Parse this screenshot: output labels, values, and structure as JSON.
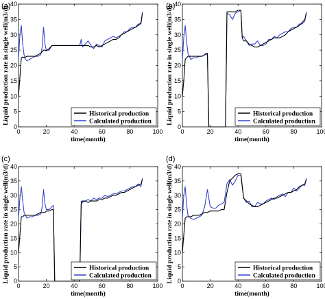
{
  "chart_data": [
    {
      "panel": "(a)",
      "type": "line",
      "xlabel": "time(month)",
      "ylabel": "Liquid production rate in single well(m3/d)",
      "xlim": [
        0,
        100
      ],
      "ylim": [
        0,
        40
      ],
      "xticks": [
        "0",
        "20",
        "40",
        "60",
        "80",
        "100"
      ],
      "yticks": [
        "0",
        "5",
        "10",
        "15",
        "20",
        "25",
        "30",
        "35",
        "40"
      ],
      "legend_position": "bottom-right",
      "series": [
        {
          "name": "Historical production",
          "color": "#000000",
          "x": [
            0,
            1,
            2,
            3,
            4,
            5,
            6,
            8,
            10,
            12,
            14,
            16,
            17,
            18,
            19,
            20,
            22,
            24,
            26,
            28,
            30,
            32,
            34,
            36,
            38,
            40,
            42,
            44,
            45,
            46,
            48,
            50,
            52,
            54,
            56,
            58,
            60,
            62,
            64,
            66,
            68,
            70,
            72,
            74,
            76,
            78,
            80,
            82,
            84,
            86,
            88,
            89
          ],
          "y": [
            10,
            16,
            22.5,
            22.8,
            22.5,
            22.7,
            23,
            23,
            23,
            23,
            23.5,
            24,
            24.5,
            25,
            25,
            24.8,
            25.5,
            26.5,
            26.5,
            26.5,
            26.5,
            26.5,
            26.5,
            26.5,
            26.5,
            26.5,
            26.5,
            26.5,
            26.5,
            26.5,
            26.5,
            26.5,
            26,
            26,
            26.5,
            26,
            26.5,
            27,
            27.5,
            28,
            28.5,
            28.5,
            29,
            30,
            30.5,
            31,
            31.5,
            32,
            32.5,
            33,
            34,
            37
          ]
        },
        {
          "name": "Calculated production",
          "color": "#3344cc",
          "x": [
            0,
            1,
            2,
            3,
            4,
            5,
            6,
            8,
            10,
            12,
            14,
            16,
            17,
            18,
            19,
            20,
            22,
            24,
            26,
            28,
            30,
            32,
            34,
            36,
            38,
            40,
            42,
            44,
            45,
            46,
            48,
            50,
            52,
            54,
            56,
            58,
            60,
            62,
            64,
            66,
            68,
            70,
            72,
            74,
            76,
            78,
            80,
            82,
            84,
            86,
            88,
            89
          ],
          "y": [
            22,
            30,
            33,
            27,
            23.5,
            22,
            21.5,
            22,
            22.5,
            23,
            23,
            23.5,
            26,
            32.5,
            27,
            25,
            25,
            26.5,
            26.5,
            26.5,
            26.5,
            26.5,
            26.5,
            26.5,
            26.5,
            26.5,
            26.5,
            26.5,
            28.5,
            26,
            27,
            28,
            26.5,
            25.5,
            27,
            26.5,
            26,
            28,
            28.5,
            29,
            29.5,
            29,
            29.5,
            30,
            31,
            31,
            32,
            32.5,
            32.5,
            33.5,
            33.5,
            37.5
          ]
        }
      ]
    },
    {
      "panel": "(b)",
      "type": "line",
      "xlabel": "time(month)",
      "ylabel": "Liquid production rate in single well(m3/d)",
      "xlim": [
        0,
        100
      ],
      "ylim": [
        0,
        40
      ],
      "xticks": [
        "0",
        "20",
        "40",
        "60",
        "80",
        "100"
      ],
      "yticks": [
        "0",
        "5",
        "10",
        "15",
        "20",
        "25",
        "30",
        "35",
        "40"
      ],
      "legend_position": "bottom-right",
      "series": [
        {
          "name": "Historical production",
          "color": "#000000",
          "x": [
            0,
            1,
            2,
            3,
            4,
            6,
            8,
            10,
            12,
            14,
            16,
            17,
            18,
            19,
            20,
            22,
            24,
            26,
            28,
            30,
            31,
            32,
            34,
            36,
            38,
            40,
            42,
            43,
            44,
            46,
            48,
            50,
            52,
            54,
            56,
            58,
            60,
            62,
            64,
            66,
            68,
            70,
            72,
            74,
            76,
            78,
            80,
            82,
            84,
            86,
            88,
            89
          ],
          "y": [
            10,
            15,
            22,
            22.5,
            23,
            23,
            23,
            23,
            23,
            23,
            23.5,
            24,
            24,
            0,
            0,
            0,
            0,
            0,
            0,
            0,
            0,
            37.5,
            37.5,
            37.5,
            37.5,
            38,
            38,
            29,
            28,
            28,
            27,
            26.5,
            26,
            26,
            26.5,
            27,
            27.5,
            28,
            28.5,
            29,
            29,
            29,
            29.5,
            30,
            31,
            31.5,
            32,
            32.5,
            33,
            34,
            35,
            37
          ]
        },
        {
          "name": "Calculated production",
          "color": "#3344cc",
          "x": [
            0,
            1,
            2,
            3,
            4,
            6,
            8,
            10,
            12,
            14,
            16,
            17,
            18,
            19,
            20,
            22,
            24,
            26,
            28,
            30,
            31,
            32,
            34,
            36,
            38,
            40,
            42,
            43,
            44,
            46,
            48,
            50,
            52,
            54,
            56,
            58,
            60,
            62,
            64,
            66,
            68,
            70,
            72,
            74,
            76,
            78,
            80,
            82,
            84,
            86,
            88,
            89
          ],
          "y": [
            22,
            29,
            33,
            28,
            24,
            22,
            22.5,
            22.5,
            23,
            23,
            23.5,
            23.5,
            23.5,
            0,
            0,
            0,
            0,
            0,
            0,
            0,
            0,
            37,
            36.5,
            35,
            37,
            37.5,
            38,
            29,
            29.5,
            28,
            26.5,
            27,
            27,
            28,
            26.5,
            26.5,
            27,
            28.5,
            28.5,
            29.5,
            29,
            30,
            30.5,
            31,
            31,
            32,
            32.5,
            32.5,
            33.5,
            33.5,
            34.5,
            37.5
          ]
        }
      ]
    },
    {
      "panel": "(c)",
      "type": "line",
      "xlabel": "time(month)",
      "ylabel": "Liquid production rate in single well(m3/d)",
      "xlim": [
        0,
        100
      ],
      "ylim": [
        0,
        40
      ],
      "xticks": [
        "0",
        "20",
        "40",
        "60",
        "80",
        "100"
      ],
      "yticks": [
        "0",
        "5",
        "10",
        "15",
        "20",
        "25",
        "30",
        "35",
        "40"
      ],
      "legend_position": "bottom-right",
      "series": [
        {
          "name": "Historical production",
          "color": "#000000",
          "x": [
            0,
            1,
            2,
            3,
            4,
            6,
            8,
            10,
            12,
            14,
            16,
            17,
            18,
            19,
            20,
            22,
            24,
            25,
            26,
            28,
            30,
            32,
            34,
            36,
            38,
            40,
            42,
            44,
            45,
            46,
            48,
            50,
            52,
            54,
            56,
            58,
            60,
            62,
            64,
            66,
            68,
            70,
            72,
            74,
            76,
            78,
            80,
            82,
            84,
            86,
            88,
            89
          ],
          "y": [
            10,
            16,
            22.5,
            22.5,
            23,
            23,
            23,
            23,
            23,
            23.5,
            24,
            24,
            24,
            24,
            24.5,
            24.5,
            25,
            25,
            0,
            0,
            0,
            0,
            0,
            0,
            0,
            0,
            0,
            0,
            27,
            28,
            28,
            27.5,
            28,
            28,
            28,
            28.5,
            28.5,
            29,
            29,
            29.5,
            30,
            30,
            30.5,
            31,
            31,
            31.5,
            32,
            32.5,
            33,
            33.5,
            34,
            35.5
          ]
        },
        {
          "name": "Calculated production",
          "color": "#3344cc",
          "x": [
            0,
            1,
            2,
            3,
            4,
            6,
            8,
            10,
            12,
            14,
            16,
            17,
            18,
            19,
            20,
            22,
            24,
            25,
            26,
            28,
            30,
            32,
            34,
            36,
            38,
            40,
            42,
            44,
            45,
            46,
            48,
            50,
            52,
            54,
            56,
            58,
            60,
            62,
            64,
            66,
            68,
            70,
            72,
            74,
            76,
            78,
            80,
            82,
            84,
            86,
            88,
            89
          ],
          "y": [
            22,
            29,
            33,
            28,
            24,
            22,
            22.5,
            22.5,
            23,
            23,
            23.5,
            26,
            32,
            27,
            25,
            25,
            26,
            26.5,
            0,
            0,
            0,
            0,
            0,
            0,
            0,
            0,
            0,
            0,
            28,
            27.5,
            28,
            28.5,
            28,
            29,
            28.5,
            29,
            29,
            30,
            29.5,
            30,
            30.5,
            30.5,
            31,
            31.5,
            31.5,
            32,
            32.5,
            33,
            33,
            34,
            33,
            36
          ]
        }
      ]
    },
    {
      "panel": "(d)",
      "type": "line",
      "xlabel": "time(month)",
      "ylabel": "Liquid production rate in single well(m3/d)",
      "xlim": [
        0,
        100
      ],
      "ylim": [
        0,
        40
      ],
      "xticks": [
        "0",
        "20",
        "40",
        "60",
        "80",
        "100"
      ],
      "yticks": [
        "0",
        "5",
        "10",
        "15",
        "20",
        "25",
        "30",
        "35",
        "40"
      ],
      "legend_position": "bottom-right",
      "series": [
        {
          "name": "Historical production",
          "color": "#000000",
          "x": [
            0,
            1,
            2,
            3,
            4,
            6,
            8,
            10,
            12,
            14,
            16,
            18,
            20,
            22,
            24,
            26,
            28,
            30,
            32,
            34,
            36,
            38,
            40,
            42,
            44,
            46,
            48,
            50,
            52,
            54,
            56,
            58,
            60,
            62,
            64,
            66,
            68,
            70,
            72,
            74,
            76,
            78,
            80,
            82,
            84,
            86,
            88,
            89
          ],
          "y": [
            10,
            16,
            22,
            22.5,
            22.5,
            22.5,
            23,
            23,
            23,
            23.5,
            24,
            24,
            24.5,
            24.5,
            24.5,
            24.5,
            25,
            25,
            31,
            35,
            36,
            37,
            37.5,
            37.5,
            29,
            28,
            27,
            26.5,
            26,
            26,
            26.5,
            27,
            27.5,
            28,
            28.5,
            29,
            29,
            29.5,
            30,
            30.5,
            31,
            31,
            31.5,
            32,
            33,
            33.5,
            34,
            35.5
          ]
        },
        {
          "name": "Calculated production",
          "color": "#3344cc",
          "x": [
            0,
            1,
            2,
            3,
            4,
            6,
            8,
            10,
            12,
            14,
            16,
            18,
            20,
            22,
            24,
            26,
            28,
            30,
            32,
            34,
            36,
            38,
            40,
            42,
            44,
            46,
            48,
            50,
            52,
            54,
            56,
            58,
            60,
            62,
            64,
            66,
            68,
            70,
            72,
            74,
            76,
            78,
            80,
            82,
            84,
            86,
            88,
            89
          ],
          "y": [
            22,
            30,
            33,
            27,
            23,
            22,
            21.5,
            22,
            22.5,
            23,
            26,
            32,
            26,
            25.5,
            25.5,
            26.5,
            27,
            27.5,
            34,
            35.5,
            33.5,
            35,
            37,
            37,
            29,
            27.5,
            28,
            26,
            26,
            27.5,
            27,
            27,
            28,
            28.5,
            29,
            28.5,
            29.5,
            30,
            30.5,
            29.5,
            31,
            31,
            32.5,
            31.5,
            32.5,
            33.5,
            33.5,
            36
          ]
        }
      ]
    }
  ]
}
